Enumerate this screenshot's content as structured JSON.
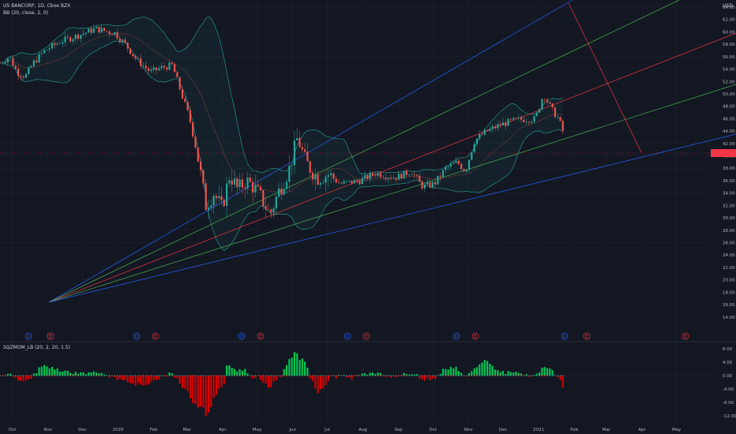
{
  "header": {
    "symbol_title": "US BANCORP, 1D, Cboe BZX",
    "bb_legend": "BB (20, close, 2, 0)",
    "sqz_legend": "SQZMOM_LB (20, 2, 20, 1.5)",
    "currency": "USD"
  },
  "last_price_tag": "",
  "colors": {
    "background": "#131722",
    "up": "#26a69a",
    "down": "#ef5350",
    "fan_blue": "#2962ff",
    "fan_green": "#4caf50",
    "fan_red": "#f23645",
    "hist_green": "#00c853",
    "hist_red": "#d50000"
  },
  "price_axis": [
    "64.00",
    "62.00",
    "60.00",
    "58.00",
    "56.00",
    "54.00",
    "52.00",
    "50.00",
    "48.00",
    "46.00",
    "44.00",
    "42.00",
    "40.00",
    "38.00",
    "36.00",
    "34.00",
    "32.00",
    "30.00",
    "28.00",
    "26.00",
    "24.00",
    "22.00",
    "20.00",
    "18.00",
    "16.00",
    "14.00"
  ],
  "oscillator_axis": [
    "8.00",
    "4.00",
    "0.00",
    "-4.00",
    "-8.00",
    "-12.00"
  ],
  "time_axis": [
    "Oct",
    "Nov",
    "Dec",
    "2020",
    "Feb",
    "Mar",
    "Apr",
    "May",
    "Jun",
    "Jul",
    "Aug",
    "Sep",
    "Oct",
    "Nov",
    "Dec",
    "2021",
    "Feb",
    "Mar",
    "Apr",
    "May"
  ],
  "event_markers": [
    {
      "letter": "D",
      "type": "dividend"
    },
    {
      "letter": "E",
      "type": "earnings"
    },
    {
      "letter": "D",
      "type": "dividend"
    },
    {
      "letter": "E",
      "type": "earnings"
    },
    {
      "letter": "D",
      "type": "dividend"
    },
    {
      "letter": "E",
      "type": "earnings"
    },
    {
      "letter": "D",
      "type": "dividend"
    },
    {
      "letter": "E",
      "type": "earnings"
    },
    {
      "letter": "D",
      "type": "dividend"
    },
    {
      "letter": "E",
      "type": "earnings"
    },
    {
      "letter": "D",
      "type": "dividend"
    },
    {
      "letter": "E",
      "type": "earnings"
    },
    {
      "letter": "E",
      "type": "earnings"
    }
  ],
  "price_path": [
    [
      "2019-09-23",
      55
    ],
    [
      "2019-10-01",
      56
    ],
    [
      "2019-10-08",
      53.5
    ],
    [
      "2019-10-15",
      52.8
    ],
    [
      "2019-10-22",
      55
    ],
    [
      "2019-11-01",
      57
    ],
    [
      "2019-11-15",
      58.5
    ],
    [
      "2019-12-01",
      59.5
    ],
    [
      "2019-12-15",
      60.5
    ],
    [
      "2020-01-01",
      59.8
    ],
    [
      "2020-01-10",
      58
    ],
    [
      "2020-01-20",
      55.5
    ],
    [
      "2020-02-01",
      53.5
    ],
    [
      "2020-02-10",
      54.2
    ],
    [
      "2020-02-20",
      54.6
    ],
    [
      "2020-02-28",
      50
    ],
    [
      "2020-03-06",
      46
    ],
    [
      "2020-03-13",
      40
    ],
    [
      "2020-03-20",
      32
    ],
    [
      "2020-03-27",
      34
    ],
    [
      "2020-04-03",
      31.5
    ],
    [
      "2020-04-10",
      37
    ],
    [
      "2020-04-17",
      34.5
    ],
    [
      "2020-04-24",
      36
    ],
    [
      "2020-05-01",
      35
    ],
    [
      "2020-05-08",
      33
    ],
    [
      "2020-05-15",
      30.5
    ],
    [
      "2020-05-22",
      34
    ],
    [
      "2020-06-01",
      38
    ],
    [
      "2020-06-08",
      43
    ],
    [
      "2020-06-15",
      39
    ],
    [
      "2020-06-25",
      36.5
    ],
    [
      "2020-07-05",
      37
    ],
    [
      "2020-07-15",
      35.5
    ],
    [
      "2020-08-01",
      36
    ],
    [
      "2020-08-15",
      37.2
    ],
    [
      "2020-09-01",
      36.5
    ],
    [
      "2020-09-15",
      37.5
    ],
    [
      "2020-09-25",
      35
    ],
    [
      "2020-10-05",
      35.5
    ],
    [
      "2020-10-15",
      38
    ],
    [
      "2020-10-25",
      39
    ],
    [
      "2020-11-01",
      37.5
    ],
    [
      "2020-11-09",
      42.5
    ],
    [
      "2020-11-20",
      44
    ],
    [
      "2020-12-01",
      45
    ],
    [
      "2020-12-15",
      45.8
    ],
    [
      "2021-01-01",
      46
    ],
    [
      "2021-01-08",
      50
    ],
    [
      "2021-01-15",
      47.5
    ],
    [
      "2021-01-21",
      46
    ],
    [
      "2021-01-27",
      43
    ]
  ]
}
